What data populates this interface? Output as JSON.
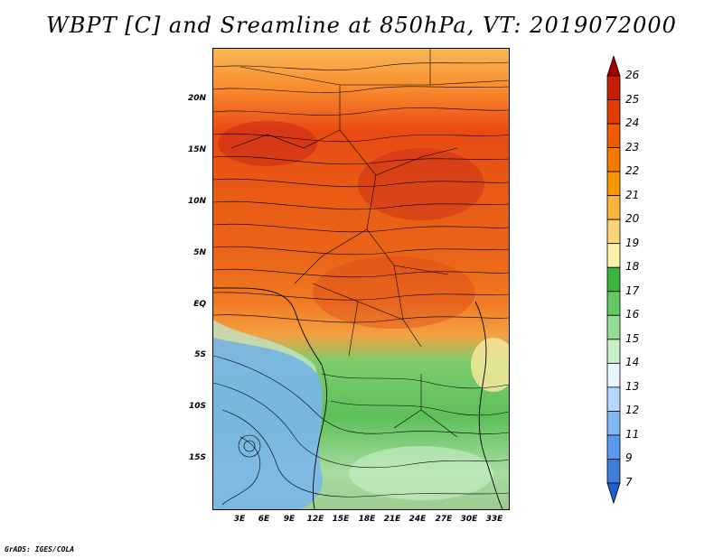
{
  "title": "WBPT [C] and Sreamline at 850hPa, VT: 2019072000",
  "footer": "GrADS: IGES/COLA",
  "axes": {
    "lat_labels": [
      "20N",
      "15N",
      "10N",
      "5N",
      "EQ",
      "5S",
      "10S",
      "15S"
    ],
    "lon_labels": [
      "3E",
      "6E",
      "9E",
      "12E",
      "15E",
      "18E",
      "21E",
      "24E",
      "27E",
      "30E",
      "33E"
    ]
  },
  "colorbar": {
    "labels": [
      "26",
      "25",
      "24",
      "23",
      "22",
      "21",
      "20",
      "19",
      "18",
      "17",
      "16",
      "15",
      "14",
      "13",
      "12",
      "11",
      "9",
      "7"
    ],
    "colors": [
      "#a50000",
      "#c81e00",
      "#e23c00",
      "#f05a00",
      "#f57800",
      "#fa9600",
      "#fdb43c",
      "#fed278",
      "#fff0aa",
      "#3cb43c",
      "#64c864",
      "#96dc96",
      "#c8f0c8",
      "#e6f5ff",
      "#b4d7ff",
      "#82b9f5",
      "#5a9bf0",
      "#3c7ddc",
      "#1e5fd2"
    ]
  }
}
